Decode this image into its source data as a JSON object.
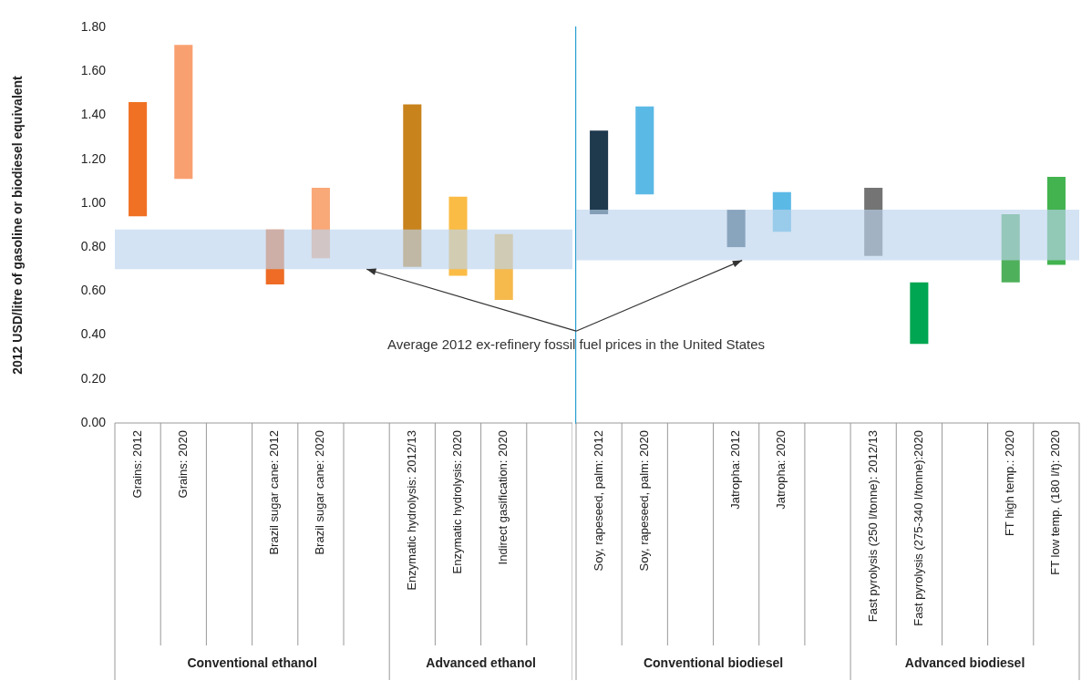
{
  "chart_data": [
    {
      "type": "bar",
      "ylabel": "2012 USD/litre of gasoline or biodiesel equivalent",
      "categories": [
        "Grains: 2012",
        "Grains: 2020",
        null,
        "Brazil sugar cane: 2012",
        "Brazil sugar cane: 2020",
        null,
        "Enzymatic hydrolysis: 2012/13",
        "Enzymatic hydrolysis: 2020",
        "Indirect gasification: 2020",
        null
      ],
      "base": [
        0.94,
        1.11,
        null,
        0.63,
        0.75,
        null,
        0.71,
        0.67,
        0.56,
        null
      ],
      "values": [
        0.52,
        0.61,
        null,
        0.25,
        0.32,
        null,
        0.74,
        0.36,
        0.3,
        null
      ],
      "colors": [
        "#f07124",
        "#f9a070",
        null,
        "#ee6c25",
        "#f9a878",
        null,
        "#c8831c",
        "#fbbc45",
        "#f6b94c",
        null
      ],
      "ylim": [
        0,
        1.8
      ],
      "yticks": [
        {
          "value": 0,
          "label": "0.00"
        },
        {
          "value": 0.2,
          "label": "0.20"
        },
        {
          "value": 0.4,
          "label": "0.40"
        },
        {
          "value": 0.6,
          "label": "0.60"
        },
        {
          "value": 0.8,
          "label": "0.80"
        },
        {
          "value": 1,
          "label": "1.00"
        },
        {
          "value": 1.2,
          "label": "1.20"
        },
        {
          "value": 1.4,
          "label": "1.40"
        },
        {
          "value": 1.6,
          "label": "1.60"
        },
        {
          "value": 1.8,
          "label": "1.80"
        }
      ],
      "bands": [
        {
          "axis": "y",
          "from": 0.7,
          "to": 0.88,
          "color": "#bcd4ee"
        }
      ],
      "annotations": [
        "Average 2012 ex-refinery fossil fuel prices in the United States",
        "Conventional ethanol",
        "Advanced ethanol"
      ],
      "grid": false,
      "legend": false
    },
    {
      "type": "bar",
      "categories": [
        "Soy, rapeseed, palm: 2012",
        "Soy, rapeseed, palm: 2020",
        null,
        "Jatropha: 2012",
        "Jatropha: 2020",
        null,
        "Fast pyrolysis (250 l/tonne): 2012/13",
        "Fast pyrolysis (275-340 l/tonne):2020",
        null,
        "FT high temp.: 2020",
        "FT low temp. (180 l/t): 2020"
      ],
      "base": [
        0.95,
        1.04,
        null,
        0.8,
        0.87,
        null,
        0.76,
        0.36,
        null,
        0.64,
        0.72
      ],
      "values": [
        0.38,
        0.4,
        null,
        0.17,
        0.18,
        null,
        0.31,
        0.28,
        null,
        0.31,
        0.4
      ],
      "colors": [
        "#1f394d",
        "#5bb9e6",
        null,
        "#2b4a61",
        "#5bb9e6",
        null,
        "#747474",
        "#00a651",
        null,
        "#4fb05b",
        "#42b34e"
      ],
      "ylim": [
        0,
        1.8
      ],
      "bands": [
        {
          "axis": "y",
          "from": 0.74,
          "to": 0.97,
          "color": "#bcd4ee"
        }
      ],
      "annotations": [
        "Conventional biodiesel",
        "Advanced biodiesel"
      ],
      "tick_labels": "x",
      "grid": false,
      "legend": false
    }
  ]
}
